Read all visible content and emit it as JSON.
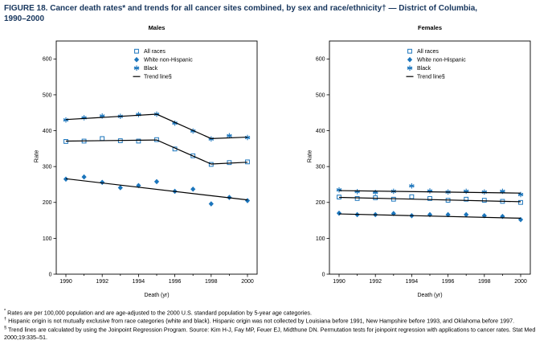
{
  "figure_title": "FIGURE 18. Cancer death rates* and trends for all cancer sites combined, by sex and race/ethnicity† — District of Columbia,\n1990–2000",
  "colors": {
    "marker": "#1b75bc",
    "trend": "#000000",
    "title_text": "#17365d",
    "axis": "#000000"
  },
  "chart_data": [
    {
      "type": "scatter",
      "title": "Males",
      "xlabel": "Death (yr)",
      "ylabel": "Rate",
      "x": [
        1990,
        1991,
        1992,
        1993,
        1994,
        1995,
        1996,
        1997,
        1998,
        1999,
        2000
      ],
      "xticks": [
        1990,
        1992,
        1994,
        1996,
        1998,
        2000
      ],
      "yticks": [
        0,
        100,
        200,
        300,
        400,
        500,
        600
      ],
      "ylim": [
        0,
        650
      ],
      "grid": false,
      "legend_position": "upper center-right inside",
      "series": [
        {
          "name": "All races",
          "marker": "square",
          "values": [
            370,
            371,
            378,
            372,
            371,
            375,
            349,
            330,
            306,
            311,
            313
          ]
        },
        {
          "name": "White non-Hispanic",
          "marker": "diamond",
          "values": [
            265,
            271,
            256,
            241,
            247,
            258,
            231,
            237,
            196,
            214,
            205
          ]
        },
        {
          "name": "Black",
          "marker": "asterisk",
          "values": [
            430,
            436,
            441,
            440,
            445,
            446,
            421,
            399,
            377,
            386,
            381
          ]
        }
      ],
      "trend_lines": [
        {
          "series": "All races",
          "points": [
            [
              1990,
              371
            ],
            [
              1995,
              374
            ],
            [
              1998,
              307
            ],
            [
              2000,
              312
            ]
          ]
        },
        {
          "series": "White non-Hispanic",
          "points": [
            [
              1990,
              266
            ],
            [
              2000,
              207
            ]
          ]
        },
        {
          "series": "Black",
          "points": [
            [
              1990,
              431
            ],
            [
              1995,
              446
            ],
            [
              1998,
              378
            ],
            [
              2000,
              382
            ]
          ]
        }
      ],
      "legend": [
        "All races",
        "White non-Hispanic",
        "Black",
        "Trend line§"
      ]
    },
    {
      "type": "scatter",
      "title": "Females",
      "xlabel": "Death (yr)",
      "ylabel": "Rate",
      "x": [
        1990,
        1991,
        1992,
        1993,
        1994,
        1995,
        1996,
        1997,
        1998,
        1999,
        2000
      ],
      "xticks": [
        1990,
        1992,
        1994,
        1996,
        1998,
        2000
      ],
      "yticks": [
        0,
        100,
        200,
        300,
        400,
        500,
        600
      ],
      "ylim": [
        0,
        650
      ],
      "grid": false,
      "legend_position": "upper center-right inside",
      "series": [
        {
          "name": "All races",
          "marker": "square",
          "values": [
            215,
            211,
            213,
            209,
            216,
            211,
            206,
            209,
            206,
            203,
            200
          ]
        },
        {
          "name": "White non-Hispanic",
          "marker": "diamond",
          "values": [
            170,
            166,
            166,
            169,
            163,
            166,
            166,
            166,
            163,
            161,
            152
          ]
        },
        {
          "name": "Black",
          "marker": "asterisk",
          "values": [
            235,
            230,
            228,
            231,
            246,
            232,
            229,
            231,
            229,
            231,
            222
          ]
        }
      ],
      "trend_lines": [
        {
          "series": "All races",
          "points": [
            [
              1990,
              214
            ],
            [
              2000,
              202
            ]
          ]
        },
        {
          "series": "White non-Hispanic",
          "points": [
            [
              1990,
              168
            ],
            [
              2000,
              156
            ]
          ]
        },
        {
          "series": "Black",
          "points": [
            [
              1990,
              233
            ],
            [
              2000,
              226
            ]
          ]
        }
      ],
      "legend": [
        "All races",
        "White non-Hispanic",
        "Black",
        "Trend line§"
      ]
    }
  ],
  "footnotes": [
    {
      "marker": "*",
      "text": " Rates are per 100,000 population and are age-adjusted to the 2000 U.S. standard population by 5-year age categories."
    },
    {
      "marker": "†",
      "text": " Hispanic origin is not mutually exclusive from race categories (white and black). Hispanic origin was not collected by Louisiana before 1991, New Hampshire before 1993, and Oklahoma before 1997."
    },
    {
      "marker": "§",
      "text": " Trend lines are calculated by using the Joinpoint Regression Program. Source: Kim H-J, Fay MP, Feuer EJ, Midthune DN. Permutation tests for joinpoint regression with applications to cancer rates. Stat Med 2000;19:335–51."
    }
  ]
}
